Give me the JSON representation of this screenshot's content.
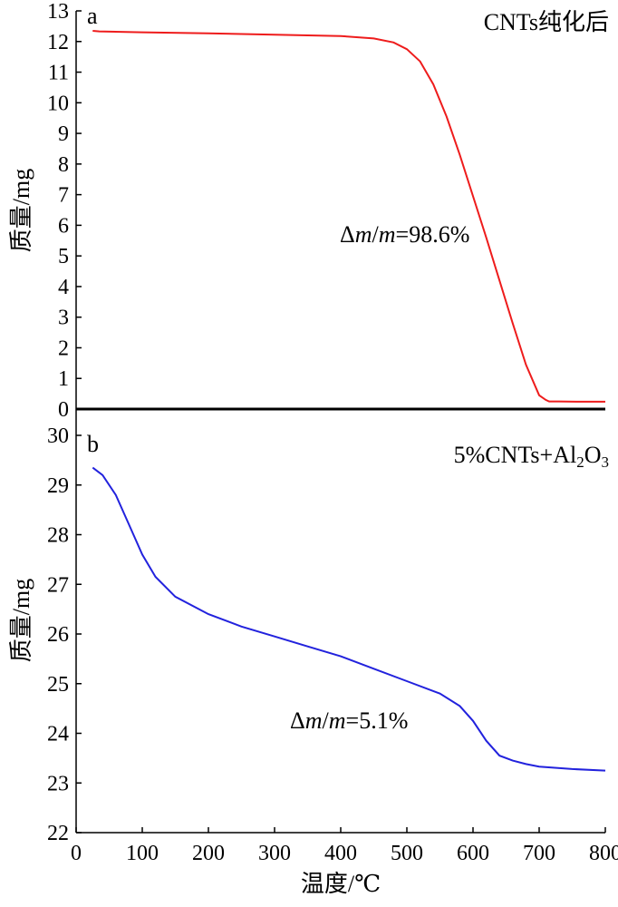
{
  "chart_data": [
    {
      "id": "a",
      "type": "line",
      "panel_letter": "a",
      "panel_label": "CNTs纯化后",
      "annotation": {
        "prefix": "Δ",
        "var1": "m",
        "slash": "/",
        "var2": "m",
        "value": "=98.6%"
      },
      "ylabel": "质量/mg",
      "xlim": [
        0,
        800
      ],
      "ylim": [
        0,
        13
      ],
      "yticks": [
        0,
        1,
        2,
        3,
        4,
        5,
        6,
        7,
        8,
        9,
        10,
        11,
        12,
        13
      ],
      "ytick_labels": [
        "0",
        "1",
        "2",
        "3",
        "4",
        "5",
        "6",
        "7",
        "8",
        "9",
        "10",
        "11",
        "12",
        "13"
      ],
      "series": [
        {
          "color": "#ee1c1c",
          "x": [
            25,
            35,
            100,
            200,
            300,
            400,
            450,
            480,
            500,
            520,
            540,
            560,
            580,
            600,
            620,
            640,
            660,
            680,
            700,
            710,
            715,
            730,
            760,
            800
          ],
          "y": [
            12.35,
            12.33,
            12.3,
            12.27,
            12.22,
            12.18,
            12.1,
            11.97,
            11.75,
            11.35,
            10.6,
            9.55,
            8.3,
            6.95,
            5.6,
            4.2,
            2.8,
            1.45,
            0.45,
            0.3,
            0.25,
            0.25,
            0.24,
            0.24
          ]
        }
      ]
    },
    {
      "id": "b",
      "type": "line",
      "panel_letter": "b",
      "panel_label_parts": {
        "t1": "5%CNTs+Al",
        "s1": "2",
        "t2": "O",
        "s2": "3"
      },
      "annotation": {
        "prefix": "Δ",
        "var1": "m",
        "slash": "/",
        "var2": "m",
        "value": "=5.1%"
      },
      "ylabel": "质量/mg",
      "xlabel": "温度/℃",
      "xlim": [
        0,
        800
      ],
      "xticks": [
        0,
        100,
        200,
        300,
        400,
        500,
        600,
        700,
        800
      ],
      "xtick_labels": [
        "0",
        "100",
        "200",
        "300",
        "400",
        "500",
        "600",
        "700",
        "800"
      ],
      "ylim": [
        22,
        30
      ],
      "yticks": [
        22,
        23,
        24,
        25,
        26,
        27,
        28,
        29,
        30
      ],
      "ytick_labels": [
        "22",
        "23",
        "24",
        "25",
        "26",
        "27",
        "28",
        "29",
        "30"
      ],
      "series": [
        {
          "color": "#2222dd",
          "x": [
            25,
            40,
            60,
            80,
            100,
            120,
            150,
            200,
            250,
            300,
            350,
            400,
            450,
            500,
            550,
            580,
            600,
            620,
            640,
            660,
            680,
            700,
            750,
            800
          ],
          "y": [
            29.35,
            29.2,
            28.8,
            28.2,
            27.6,
            27.15,
            26.75,
            26.4,
            26.15,
            25.95,
            25.75,
            25.55,
            25.3,
            25.05,
            24.8,
            24.55,
            24.25,
            23.85,
            23.55,
            23.45,
            23.38,
            23.33,
            23.28,
            23.25
          ]
        }
      ]
    }
  ]
}
